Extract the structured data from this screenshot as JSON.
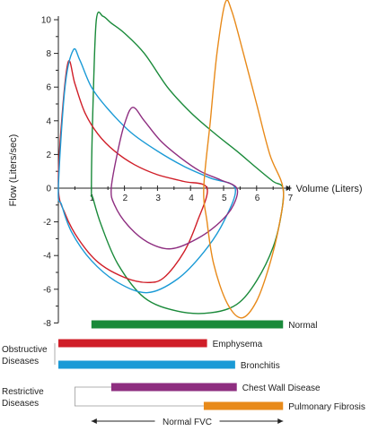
{
  "chart_data": {
    "type": "line",
    "title": "",
    "xlabel": "Volume (Liters)",
    "ylabel": "Flow (Liters/sec)",
    "xlim": [
      0,
      7
    ],
    "ylim": [
      -8,
      10
    ],
    "x_ticks": [
      "1",
      "2",
      "3",
      "4",
      "5",
      "6",
      "7"
    ],
    "y_ticks": [
      "10",
      "8",
      "6",
      "4",
      "2",
      "0",
      "-2",
      "-4",
      "-6",
      "-8"
    ],
    "series": [
      {
        "id": "normal",
        "color": "#1a8a3a",
        "points": [
          [
            1.0,
            0
          ],
          [
            1.05,
            5.0
          ],
          [
            1.15,
            10.0
          ],
          [
            1.35,
            10.2
          ],
          [
            1.6,
            9.8
          ],
          [
            2.0,
            9.2
          ],
          [
            2.6,
            8.0
          ],
          [
            3.3,
            6.0
          ],
          [
            4.0,
            4.5
          ],
          [
            4.7,
            3.3
          ],
          [
            5.4,
            2.2
          ],
          [
            6.0,
            1.2
          ],
          [
            6.5,
            0.4
          ],
          [
            6.8,
            0
          ],
          [
            6.75,
            -1.5
          ],
          [
            6.5,
            -3.5
          ],
          [
            6.0,
            -5.5
          ],
          [
            5.4,
            -6.9
          ],
          [
            4.6,
            -7.4
          ],
          [
            3.6,
            -7.3
          ],
          [
            2.6,
            -6.5
          ],
          [
            1.8,
            -4.5
          ],
          [
            1.3,
            -2.2
          ],
          [
            1.05,
            -0.6
          ],
          [
            1.0,
            0
          ]
        ]
      },
      {
        "id": "emphysema",
        "color": "#d01e28",
        "points": [
          [
            0.0,
            0
          ],
          [
            0.1,
            4.0
          ],
          [
            0.3,
            7.5
          ],
          [
            0.5,
            6.2
          ],
          [
            0.8,
            4.5
          ],
          [
            1.2,
            3.2
          ],
          [
            1.7,
            2.2
          ],
          [
            2.3,
            1.4
          ],
          [
            3.0,
            0.8
          ],
          [
            3.8,
            0.4
          ],
          [
            4.5,
            0
          ],
          [
            4.2,
            -2.0
          ],
          [
            3.8,
            -3.8
          ],
          [
            3.2,
            -5.3
          ],
          [
            2.7,
            -5.6
          ],
          [
            2.0,
            -5.3
          ],
          [
            1.2,
            -4.4
          ],
          [
            0.6,
            -3.0
          ],
          [
            0.2,
            -1.5
          ],
          [
            0.0,
            0
          ]
        ]
      },
      {
        "id": "bronchitis",
        "color": "#1a9ad6",
        "points": [
          [
            0.0,
            0
          ],
          [
            0.2,
            6.0
          ],
          [
            0.45,
            8.2
          ],
          [
            0.65,
            7.6
          ],
          [
            1.0,
            6.0
          ],
          [
            1.5,
            4.7
          ],
          [
            2.2,
            3.3
          ],
          [
            3.0,
            2.2
          ],
          [
            3.8,
            1.3
          ],
          [
            4.6,
            0.6
          ],
          [
            5.35,
            0
          ],
          [
            5.0,
            -2.0
          ],
          [
            4.4,
            -3.8
          ],
          [
            3.6,
            -5.4
          ],
          [
            2.7,
            -6.2
          ],
          [
            1.8,
            -5.6
          ],
          [
            1.0,
            -4.3
          ],
          [
            0.4,
            -2.6
          ],
          [
            0.1,
            -1.0
          ],
          [
            0.0,
            0
          ]
        ]
      },
      {
        "id": "chest-wall-disease",
        "color": "#8e2e80",
        "points": [
          [
            1.6,
            0
          ],
          [
            1.8,
            2.2
          ],
          [
            2.0,
            3.8
          ],
          [
            2.25,
            4.8
          ],
          [
            2.6,
            4.0
          ],
          [
            3.1,
            2.8
          ],
          [
            3.7,
            1.8
          ],
          [
            4.3,
            1.0
          ],
          [
            4.9,
            0.5
          ],
          [
            5.4,
            0
          ],
          [
            5.3,
            -1.0
          ],
          [
            4.9,
            -2.0
          ],
          [
            4.2,
            -3.0
          ],
          [
            3.4,
            -3.6
          ],
          [
            2.7,
            -3.2
          ],
          [
            2.1,
            -2.2
          ],
          [
            1.7,
            -1.0
          ],
          [
            1.6,
            0
          ]
        ]
      },
      {
        "id": "pulmonary-fibrosis",
        "color": "#e88a1a",
        "points": [
          [
            4.4,
            0
          ],
          [
            4.6,
            4.0
          ],
          [
            4.8,
            8.0
          ],
          [
            5.05,
            11.0
          ],
          [
            5.25,
            10.5
          ],
          [
            5.6,
            8.0
          ],
          [
            6.0,
            5.0
          ],
          [
            6.4,
            2.0
          ],
          [
            6.8,
            0
          ],
          [
            6.7,
            -2.0
          ],
          [
            6.4,
            -4.5
          ],
          [
            6.0,
            -6.7
          ],
          [
            5.55,
            -7.7
          ],
          [
            5.1,
            -6.8
          ],
          [
            4.7,
            -4.5
          ],
          [
            4.5,
            -2.0
          ],
          [
            4.4,
            0
          ]
        ]
      }
    ],
    "bars": [
      {
        "id": "normal",
        "label": "Normal",
        "start": 1.0,
        "end": 6.8,
        "color": "#1a8a3a"
      },
      {
        "id": "emphysema",
        "label": "Emphysema",
        "start": 0.0,
        "end": 4.5,
        "color": "#d01e28"
      },
      {
        "id": "bronchitis",
        "label": "Bronchitis",
        "start": 0.0,
        "end": 5.35,
        "color": "#1a9ad6"
      },
      {
        "id": "chest-wall-disease",
        "label": "Chest Wall Disease",
        "start": 1.6,
        "end": 5.4,
        "color": "#8e2e80"
      },
      {
        "id": "pulmonary-fibrosis",
        "label": "Pulmonary Fibrosis",
        "start": 4.4,
        "end": 6.8,
        "color": "#e88a1a"
      }
    ],
    "groups": {
      "obstructive": "Obstructive\nDiseases",
      "restrictive": "Restrictive\nDiseases"
    },
    "normal_fvc_label": "Normal FVC"
  }
}
